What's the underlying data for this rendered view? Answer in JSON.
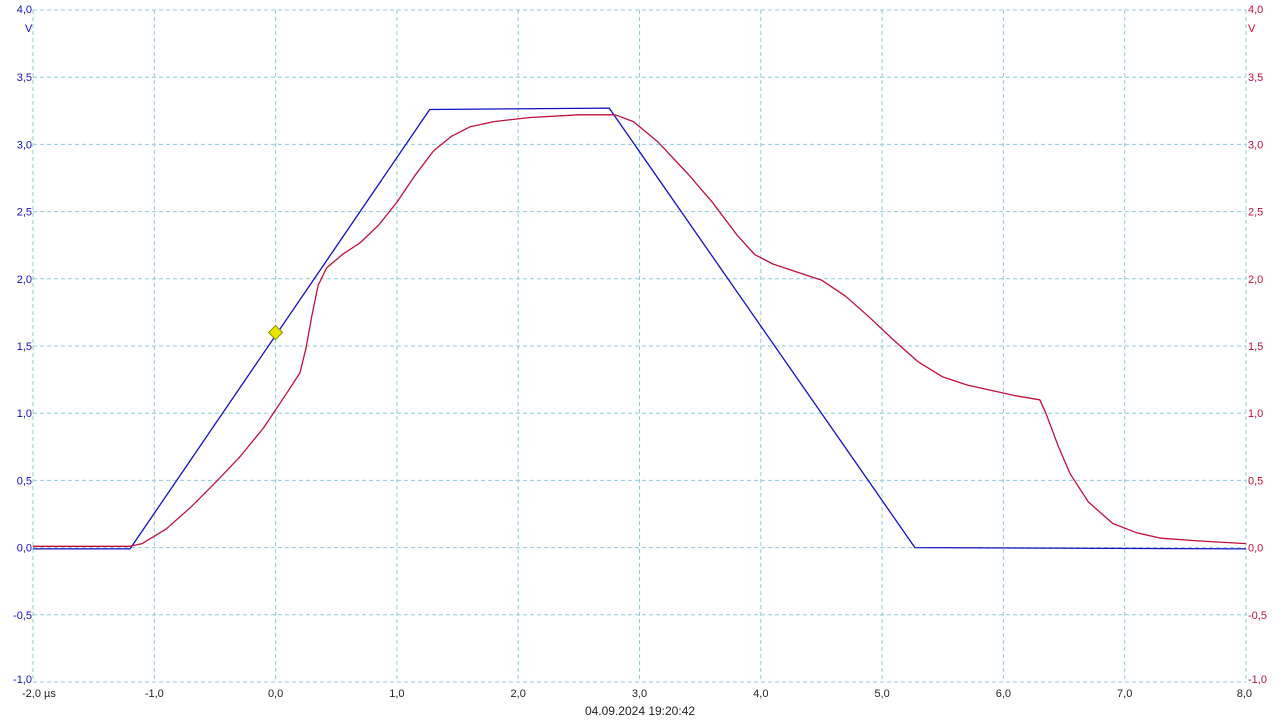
{
  "chart_data": {
    "type": "line",
    "x_unit": "µs",
    "xlim": [
      -2.0,
      8.0
    ],
    "ylim": [
      -1.0,
      4.0
    ],
    "x_ticks": [
      {
        "value": -2.0,
        "label": "-2,0 µs"
      },
      {
        "value": -1.0,
        "label": "-1,0"
      },
      {
        "value": 0.0,
        "label": "0,0"
      },
      {
        "value": 1.0,
        "label": "1,0"
      },
      {
        "value": 2.0,
        "label": "2,0"
      },
      {
        "value": 3.0,
        "label": "3,0"
      },
      {
        "value": 4.0,
        "label": "4,0"
      },
      {
        "value": 5.0,
        "label": "5,0"
      },
      {
        "value": 6.0,
        "label": "6,0"
      },
      {
        "value": 7.0,
        "label": "7,0"
      },
      {
        "value": 8.0,
        "label": "8,0"
      }
    ],
    "y_ticks": [
      {
        "value": -1.0,
        "label": "-1,0"
      },
      {
        "value": -0.5,
        "label": "-0,5"
      },
      {
        "value": 0.0,
        "label": "0,0"
      },
      {
        "value": 0.5,
        "label": "0,5"
      },
      {
        "value": 1.0,
        "label": "1,0"
      },
      {
        "value": 1.5,
        "label": "1,5"
      },
      {
        "value": 2.0,
        "label": "2,0"
      },
      {
        "value": 2.5,
        "label": "2,5"
      },
      {
        "value": 3.0,
        "label": "3,0"
      },
      {
        "value": 3.5,
        "label": "3,5"
      },
      {
        "value": 4.0,
        "label": "4,0"
      }
    ],
    "left_axis_unit": "V",
    "right_axis_unit": "V",
    "grid": true,
    "timestamp": "04.09.2024 19:20:42",
    "trigger_marker": {
      "x": 0.0,
      "y": 1.6,
      "color": "#e6e600"
    },
    "series": [
      {
        "color": "#1010c0",
        "axis": "left",
        "points": [
          [
            -2.0,
            -0.01
          ],
          [
            -1.2,
            -0.01
          ],
          [
            1.27,
            3.26
          ],
          [
            2.75,
            3.27
          ],
          [
            5.27,
            0.0
          ],
          [
            8.0,
            -0.01
          ]
        ]
      },
      {
        "color": "#c0103a",
        "axis": "right",
        "points": [
          [
            -2.0,
            0.01
          ],
          [
            -1.2,
            0.01
          ],
          [
            -1.1,
            0.03
          ],
          [
            -0.9,
            0.14
          ],
          [
            -0.7,
            0.3
          ],
          [
            -0.5,
            0.48
          ],
          [
            -0.3,
            0.67
          ],
          [
            -0.1,
            0.89
          ],
          [
            0.1,
            1.16
          ],
          [
            0.2,
            1.3
          ],
          [
            0.25,
            1.48
          ],
          [
            0.3,
            1.73
          ],
          [
            0.35,
            1.95
          ],
          [
            0.42,
            2.08
          ],
          [
            0.55,
            2.18
          ],
          [
            0.7,
            2.27
          ],
          [
            0.85,
            2.4
          ],
          [
            1.0,
            2.57
          ],
          [
            1.15,
            2.77
          ],
          [
            1.3,
            2.95
          ],
          [
            1.45,
            3.06
          ],
          [
            1.6,
            3.13
          ],
          [
            1.8,
            3.17
          ],
          [
            2.1,
            3.2
          ],
          [
            2.5,
            3.22
          ],
          [
            2.8,
            3.22
          ],
          [
            2.95,
            3.17
          ],
          [
            3.15,
            3.02
          ],
          [
            3.4,
            2.78
          ],
          [
            3.6,
            2.57
          ],
          [
            3.8,
            2.33
          ],
          [
            3.95,
            2.18
          ],
          [
            4.1,
            2.11
          ],
          [
            4.3,
            2.05
          ],
          [
            4.5,
            1.99
          ],
          [
            4.7,
            1.87
          ],
          [
            4.9,
            1.71
          ],
          [
            5.1,
            1.54
          ],
          [
            5.3,
            1.38
          ],
          [
            5.5,
            1.27
          ],
          [
            5.7,
            1.21
          ],
          [
            5.9,
            1.17
          ],
          [
            6.1,
            1.13
          ],
          [
            6.3,
            1.1
          ],
          [
            6.35,
            1.0
          ],
          [
            6.45,
            0.76
          ],
          [
            6.55,
            0.55
          ],
          [
            6.7,
            0.34
          ],
          [
            6.9,
            0.18
          ],
          [
            7.1,
            0.11
          ],
          [
            7.3,
            0.07
          ],
          [
            7.6,
            0.05
          ],
          [
            8.0,
            0.03
          ]
        ]
      }
    ]
  }
}
